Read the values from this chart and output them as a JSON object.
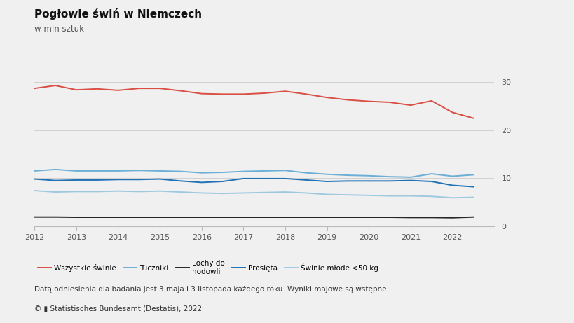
{
  "title": "Pogłowie świń w Niemczech",
  "subtitle": "w mln sztuk",
  "footnote": "Datą odniesienia dla badania jest 3 maja i 3 listopada każdego roku. Wyniki majowe są wstępne.",
  "source": "© ▮ Statistisches Bundesamt (Destatis), 2022",
  "background_color": "#f0f0f0",
  "ylim": [
    0,
    35
  ],
  "yticks": [
    0,
    10,
    20,
    30
  ],
  "series": {
    "Wszystkie świnie": {
      "color": "#d94f43",
      "linewidth": 1.4,
      "x": [
        2012.0,
        2012.5,
        2013.0,
        2013.5,
        2014.0,
        2014.5,
        2015.0,
        2015.5,
        2016.0,
        2016.5,
        2017.0,
        2017.5,
        2018.0,
        2018.5,
        2019.0,
        2019.5,
        2020.0,
        2020.5,
        2021.0,
        2021.5,
        2022.0,
        2022.5
      ],
      "y": [
        28.7,
        29.3,
        28.4,
        28.6,
        28.3,
        28.7,
        28.7,
        28.2,
        27.6,
        27.5,
        27.5,
        27.7,
        28.1,
        27.5,
        26.8,
        26.3,
        26.0,
        25.8,
        25.2,
        26.1,
        23.7,
        22.5
      ]
    },
    "Tuczniki": {
      "color": "#6baed6",
      "linewidth": 1.4,
      "x": [
        2012.0,
        2012.5,
        2013.0,
        2013.5,
        2014.0,
        2014.5,
        2015.0,
        2015.5,
        2016.0,
        2016.5,
        2017.0,
        2017.5,
        2018.0,
        2018.5,
        2019.0,
        2019.5,
        2020.0,
        2020.5,
        2021.0,
        2021.5,
        2022.0,
        2022.5
      ],
      "y": [
        11.5,
        11.8,
        11.5,
        11.5,
        11.5,
        11.6,
        11.5,
        11.4,
        11.1,
        11.2,
        11.4,
        11.5,
        11.6,
        11.1,
        10.8,
        10.6,
        10.5,
        10.3,
        10.2,
        10.9,
        10.4,
        10.7
      ]
    },
    "Lochy do hodowli": {
      "color": "#252525",
      "linewidth": 1.4,
      "x": [
        2012.0,
        2012.5,
        2013.0,
        2013.5,
        2014.0,
        2014.5,
        2015.0,
        2015.5,
        2016.0,
        2016.5,
        2017.0,
        2017.5,
        2018.0,
        2018.5,
        2019.0,
        2019.5,
        2020.0,
        2020.5,
        2021.0,
        2021.5,
        2022.0,
        2022.5
      ],
      "y": [
        1.9,
        1.9,
        1.85,
        1.85,
        1.85,
        1.85,
        1.85,
        1.85,
        1.85,
        1.85,
        1.85,
        1.85,
        1.85,
        1.85,
        1.85,
        1.85,
        1.85,
        1.85,
        1.8,
        1.8,
        1.75,
        1.9
      ]
    },
    "Prosięta": {
      "color": "#2171b5",
      "linewidth": 1.4,
      "x": [
        2012.0,
        2012.5,
        2013.0,
        2013.5,
        2014.0,
        2014.5,
        2015.0,
        2015.5,
        2016.0,
        2016.5,
        2017.0,
        2017.5,
        2018.0,
        2018.5,
        2019.0,
        2019.5,
        2020.0,
        2020.5,
        2021.0,
        2021.5,
        2022.0,
        2022.5
      ],
      "y": [
        9.8,
        9.5,
        9.6,
        9.6,
        9.7,
        9.7,
        9.8,
        9.4,
        9.1,
        9.3,
        9.9,
        9.9,
        9.9,
        9.6,
        9.3,
        9.4,
        9.4,
        9.4,
        9.5,
        9.3,
        8.5,
        8.2
      ]
    },
    "Świnie młode <50 kg": {
      "color": "#9ecae1",
      "linewidth": 1.4,
      "x": [
        2012.0,
        2012.5,
        2013.0,
        2013.5,
        2014.0,
        2014.5,
        2015.0,
        2015.5,
        2016.0,
        2016.5,
        2017.0,
        2017.5,
        2018.0,
        2018.5,
        2019.0,
        2019.5,
        2020.0,
        2020.5,
        2021.0,
        2021.5,
        2022.0,
        2022.5
      ],
      "y": [
        7.4,
        7.1,
        7.2,
        7.2,
        7.3,
        7.2,
        7.3,
        7.1,
        6.9,
        6.8,
        6.9,
        7.0,
        7.1,
        6.9,
        6.6,
        6.5,
        6.4,
        6.3,
        6.3,
        6.2,
        5.9,
        6.0
      ]
    }
  },
  "series_order": [
    "Wszystkie świnie",
    "Tuczniki",
    "Lochy do hodowli",
    "Prosięta",
    "Świnie młode <50 kg"
  ],
  "legend_labels": [
    "Wszystkie świnie",
    "Tuczniki",
    "Lochy do\nhodowli",
    "Prosięta",
    "Świnie młode <50 kg"
  ],
  "xlim": [
    2012,
    2023
  ],
  "xticks": [
    2012,
    2013,
    2014,
    2015,
    2016,
    2017,
    2018,
    2019,
    2020,
    2021,
    2022
  ]
}
